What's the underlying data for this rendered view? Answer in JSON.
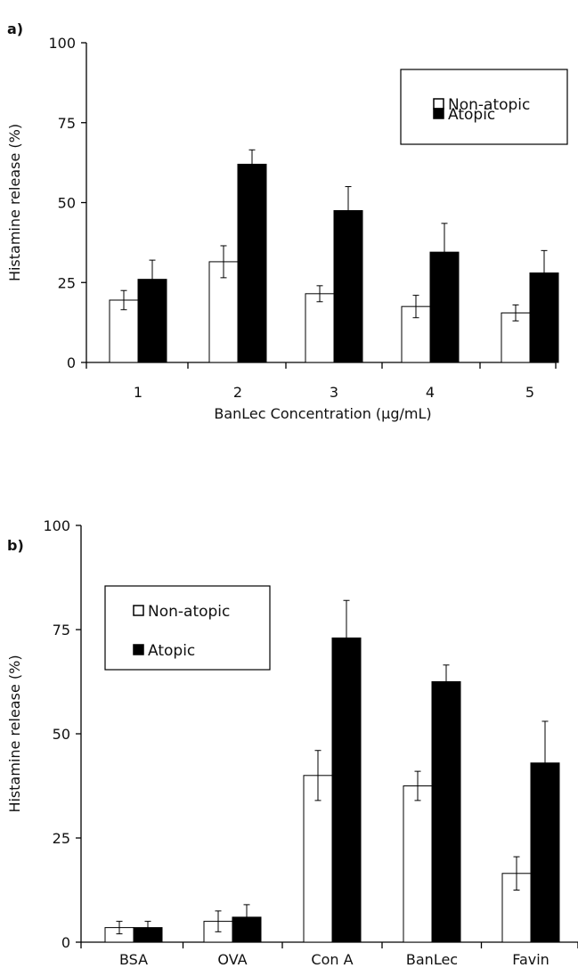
{
  "chart_data": [
    {
      "panel_label": "a)",
      "type": "bar",
      "categories": [
        "1",
        "2",
        "3",
        "4",
        "5"
      ],
      "series": [
        {
          "name": "Non-atopic",
          "values": [
            19.5,
            31.5,
            21.5,
            17.5,
            15.5
          ],
          "errors": [
            3,
            5,
            2.5,
            3.5,
            2.5
          ],
          "color": "#ffffff"
        },
        {
          "name": "Atopic",
          "values": [
            26,
            62,
            47.5,
            34.5,
            28
          ],
          "errors": [
            6,
            4.5,
            7.5,
            9,
            7
          ],
          "color": "#000000"
        }
      ],
      "xlabel": "BanLec Concentration (µg/mL)",
      "ylabel": "Histamine release (%)",
      "ylim": [
        0,
        100
      ],
      "yticks": [
        "0",
        "25",
        "50",
        "75",
        "100"
      ],
      "grid": false,
      "legend": "top-right"
    },
    {
      "panel_label": "b)",
      "type": "bar",
      "categories": [
        "BSA",
        "OVA",
        "Con A",
        "BanLec",
        "Favin"
      ],
      "series": [
        {
          "name": "Non-atopic",
          "values": [
            3.5,
            5,
            40,
            37.5,
            16.5
          ],
          "errors": [
            1.5,
            2.5,
            6,
            3.5,
            4
          ],
          "color": "#ffffff"
        },
        {
          "name": "Atopic",
          "values": [
            3.5,
            6,
            73,
            62.5,
            43
          ],
          "errors": [
            1.5,
            3,
            9,
            4,
            10
          ],
          "color": "#000000"
        }
      ],
      "xlabel": "",
      "ylabel": "Histamine release (%)",
      "ylim": [
        0,
        100
      ],
      "yticks": [
        "0",
        "25",
        "50",
        "75",
        "100"
      ],
      "grid": false,
      "legend": "top-left"
    }
  ]
}
